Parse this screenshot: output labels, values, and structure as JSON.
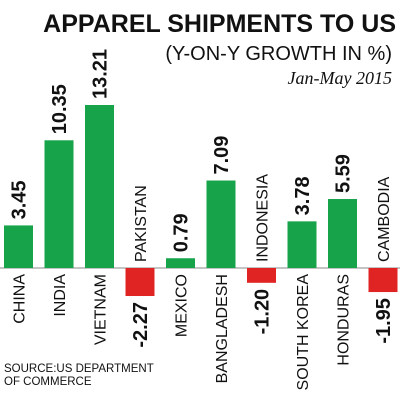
{
  "chart_data": {
    "type": "bar",
    "title": "APPAREL SHIPMENTS TO US",
    "subtitle": "(Y-ON-Y GROWTH IN %)",
    "period": "Jan-May 2015",
    "categories": [
      "CHINA",
      "INDIA",
      "VIETNAM",
      "PAKISTAN",
      "MEXICO",
      "BANGLADESH",
      "INDONESIA",
      "SOUTH KOREA",
      "HONDURAS",
      "CAMBODIA"
    ],
    "values": [
      3.45,
      10.35,
      13.21,
      -2.27,
      0.79,
      7.09,
      -1.2,
      3.78,
      5.59,
      -1.95
    ],
    "value_labels": [
      "3.45",
      "10.35",
      "13.21",
      "-2.27",
      "0.79",
      "7.09",
      "-1.20",
      "3.78",
      "5.59",
      "-1.95"
    ],
    "xlabel": "",
    "ylabel": "",
    "grid": false,
    "legend": "none",
    "colors": {
      "positive": "#16a34a",
      "negative": "#e02424",
      "axis": "#888888"
    }
  },
  "source": {
    "line1": "SOURCE:US DEPARTMENT",
    "line2": "OF COMMERCE"
  }
}
